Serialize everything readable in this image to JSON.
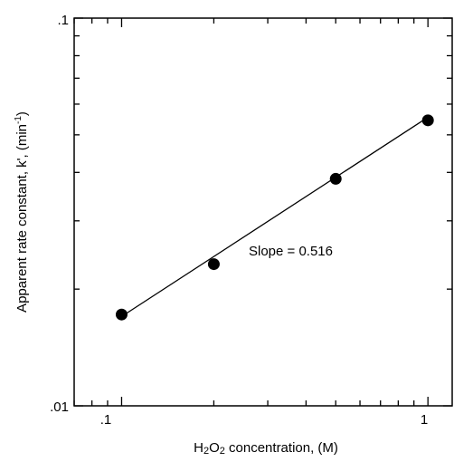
{
  "chart_data": {
    "type": "scatter",
    "x_scale": "log",
    "y_scale": "log",
    "xlim": [
      0.07,
      1.2
    ],
    "ylim": [
      0.01,
      0.1
    ],
    "x_ticks": [
      ".1",
      "1"
    ],
    "y_ticks": [
      ".01",
      ".1"
    ],
    "xlabel": {
      "pre": "H",
      "sub1": "2",
      "mid": "O",
      "sub2": "2",
      "post": " concentration, (M)"
    },
    "ylabel": {
      "pre": "Apparent rate constant, k', (min",
      "sup": "-1",
      "post": ")"
    },
    "points": [
      {
        "x": 0.1,
        "y": 0.0172
      },
      {
        "x": 0.2,
        "y": 0.0232
      },
      {
        "x": 0.5,
        "y": 0.0385
      },
      {
        "x": 1.0,
        "y": 0.0545
      }
    ],
    "fit_line": {
      "x": [
        0.1,
        1.0
      ],
      "y": [
        0.017,
        0.0555
      ]
    },
    "annotation": "Slope = 0.516",
    "grid": false
  }
}
